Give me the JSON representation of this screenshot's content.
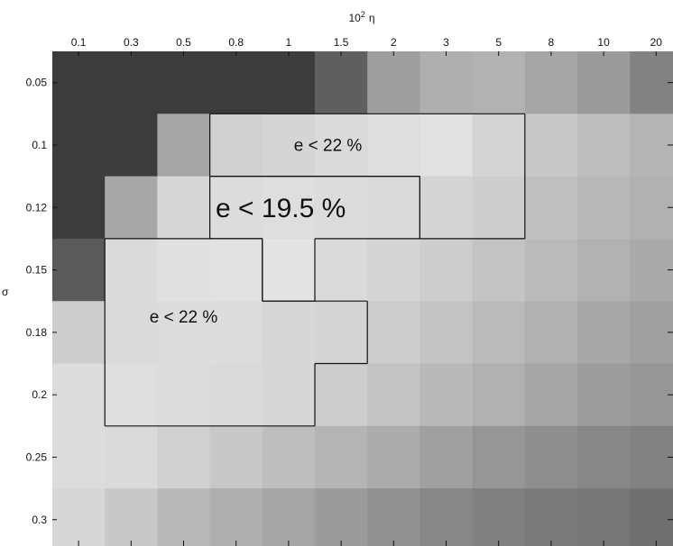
{
  "chart_data": {
    "type": "heatmap",
    "title": "",
    "xlabel": "10",
    "xlabel_superscript": "2",
    "xlabel_symbol": "η",
    "ylabel": "σ",
    "x_categories": [
      "0.1",
      "0.3",
      "0.5",
      "0.8",
      "1",
      "1.5",
      "2",
      "3",
      "5",
      "8",
      "10",
      "20"
    ],
    "y_categories": [
      "0.05",
      "0.1",
      "0.12",
      "0.15",
      "0.18",
      "0.2",
      "0.25",
      "0.3"
    ],
    "x_axis_position": "top",
    "grid": false,
    "colorscale": "grayscale",
    "cell_gray_levels": [
      [
        60,
        60,
        60,
        60,
        60,
        95,
        158,
        175,
        178,
        165,
        155,
        130
      ],
      [
        60,
        60,
        165,
        208,
        213,
        218,
        222,
        225,
        212,
        200,
        190,
        180
      ],
      [
        60,
        168,
        215,
        220,
        222,
        220,
        218,
        212,
        205,
        192,
        184,
        176
      ],
      [
        90,
        218,
        224,
        226,
        228,
        218,
        212,
        205,
        196,
        186,
        178,
        170
      ],
      [
        205,
        218,
        220,
        220,
        215,
        212,
        205,
        195,
        186,
        176,
        168,
        160
      ],
      [
        220,
        222,
        220,
        218,
        215,
        205,
        195,
        185,
        176,
        166,
        156,
        150
      ],
      [
        220,
        218,
        208,
        200,
        190,
        180,
        172,
        160,
        150,
        142,
        136,
        130
      ],
      [
        215,
        200,
        185,
        175,
        165,
        155,
        145,
        135,
        128,
        122,
        118,
        112
      ]
    ],
    "contours": [
      {
        "label": "e < 19.5 %",
        "cells": [
          [
            2,
            3
          ],
          [
            2,
            4
          ],
          [
            2,
            5
          ],
          [
            2,
            6
          ],
          [
            3,
            4
          ]
        ]
      },
      {
        "label": "e < 22 %",
        "cells": [
          [
            1,
            3
          ],
          [
            1,
            4
          ],
          [
            1,
            5
          ],
          [
            1,
            6
          ],
          [
            1,
            7
          ],
          [
            1,
            8
          ],
          [
            2,
            7
          ],
          [
            2,
            8
          ]
        ]
      },
      {
        "label": "e < 22 %",
        "cells": [
          [
            3,
            1
          ],
          [
            3,
            2
          ],
          [
            3,
            3
          ],
          [
            4,
            1
          ],
          [
            4,
            2
          ],
          [
            4,
            3
          ],
          [
            4,
            4
          ],
          [
            4,
            5
          ],
          [
            5,
            1
          ],
          [
            5,
            2
          ],
          [
            5,
            3
          ],
          [
            5,
            4
          ]
        ]
      }
    ],
    "annotations": [
      {
        "text": "e < 22 %",
        "row": 1,
        "col": 5.25,
        "size": "medium"
      },
      {
        "text": "e < 19.5 %",
        "row": 2,
        "col": 4.35,
        "size": "large"
      },
      {
        "text": "e < 22 %",
        "row": 3.75,
        "col": 2.5,
        "size": "medium"
      }
    ]
  }
}
